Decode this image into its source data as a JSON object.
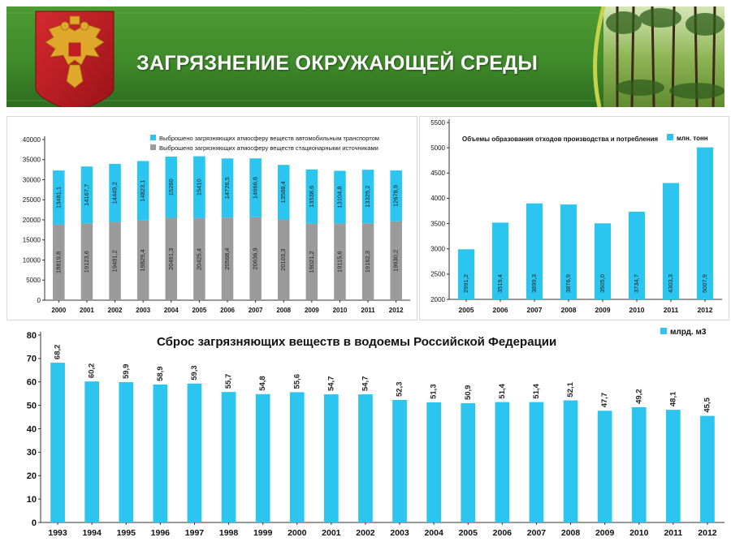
{
  "banner": {
    "title": "ЗАГРЯЗНЕНИЕ ОКРУЖАЮЩЕЙ СРЕДЫ",
    "emblem_icon": "russian-coat-of-arms-icon",
    "photo": "forest-photo",
    "colors": {
      "green": "#3f8a2a",
      "dark_green": "#1d5a16",
      "accent": "#c6d24a",
      "shield": "#c01d24",
      "gold": "#e0a82a"
    }
  },
  "chart_data": [
    {
      "id": "emissions",
      "type": "bar",
      "stacked": true,
      "title": "",
      "xlabel": "",
      "ylabel": "",
      "ylim": [
        0,
        40000
      ],
      "yticks": [
        "0",
        "5000",
        "10000",
        "15000",
        "20000",
        "25000",
        "30000",
        "35000",
        "40000"
      ],
      "grid": false,
      "legend_position": "top",
      "categories": [
        "2000",
        "2001",
        "2002",
        "2003",
        "2004",
        "2005",
        "2006",
        "2007",
        "2008",
        "2009",
        "2010",
        "2011",
        "2012"
      ],
      "series": [
        {
          "name": "Выброшено загрязняющих атмосферу веществ стационарными источниками",
          "color": "#9b9b9b",
          "values": [
            18819.8,
            19123.6,
            19481.2,
            19829.4,
            20491.3,
            20425.4,
            20568.4,
            20636.9,
            20103.3,
            19021.2,
            19115.6,
            19162.3,
            19630.2
          ],
          "labels": [
            "18819,8",
            "19123,6",
            "19481,2",
            "19829,4",
            "20491,3",
            "20425,4",
            "20568,4",
            "20636,9",
            "20103,3",
            "19021,2",
            "19115,6",
            "19162,3",
            "19630,2"
          ]
        },
        {
          "name": "Выброшено загрязняющих атмосферу веществ автомобильным транспортом",
          "color": "#2cc5ef",
          "values": [
            13481.1,
            14167.7,
            14449.2,
            14823.1,
            15260,
            15410,
            14726.5,
            14666.6,
            13588.4,
            13538.6,
            13104.8,
            13325.2,
            12678.9
          ],
          "labels": [
            "13481,1",
            "14167,7",
            "14449,2",
            "14823,1",
            "15260",
            "15410",
            "14726,5",
            "14666,6",
            "13588,4",
            "13538,6",
            "13104,8",
            "13325,2",
            "12678,9"
          ]
        }
      ]
    },
    {
      "id": "waste",
      "type": "bar",
      "title": "Объемы образования отходов производства и потребления",
      "xlabel": "",
      "ylabel": "",
      "ylim": [
        2000,
        5500
      ],
      "yticks": [
        "2000",
        "2500",
        "3000",
        "3500",
        "4000",
        "4500",
        "5000",
        "5500"
      ],
      "grid": false,
      "legend_position": "top-right",
      "categories": [
        "2005",
        "2006",
        "2007",
        "2008",
        "2009",
        "2010",
        "2011",
        "2012"
      ],
      "series": [
        {
          "name": "млн. тонн",
          "color": "#2cc5ef",
          "values": [
            2991.2,
            3519.4,
            3899.3,
            3876.9,
            3505.0,
            3734.7,
            4303.3,
            5007.9
          ],
          "labels": [
            "2991,2",
            "3519,4",
            "3899,3",
            "3876,9",
            "3505,0",
            "3734,7",
            "4303,3",
            "5007,9"
          ]
        }
      ]
    },
    {
      "id": "water",
      "type": "bar",
      "title": "Сброс загрязняющих веществ в водоемы Российской Федерации",
      "xlabel": "",
      "ylabel": "",
      "ylim": [
        0,
        80
      ],
      "yticks": [
        "0",
        "10",
        "20",
        "30",
        "40",
        "50",
        "60",
        "70",
        "80"
      ],
      "grid": false,
      "legend_position": "top-right",
      "categories": [
        "1993",
        "1994",
        "1995",
        "1996",
        "1997",
        "1998",
        "1999",
        "2000",
        "2001",
        "2002",
        "2003",
        "2004",
        "2005",
        "2006",
        "2007",
        "2008",
        "2009",
        "2010",
        "2011",
        "2012"
      ],
      "series": [
        {
          "name": "млрд. м3",
          "color": "#2cc5ef",
          "values": [
            68.2,
            60.2,
            59.9,
            58.9,
            59.3,
            55.7,
            54.8,
            55.6,
            54.7,
            54.7,
            52.3,
            51.3,
            50.9,
            51.4,
            51.4,
            52.1,
            47.7,
            49.2,
            48.1,
            45.5
          ],
          "labels": [
            "68,2",
            "60,2",
            "59,9",
            "58,9",
            "59,3",
            "55,7",
            "54,8",
            "55,6",
            "54,7",
            "54,7",
            "52,3",
            "51,3",
            "50,9",
            "51,4",
            "51,4",
            "52,1",
            "47,7",
            "49,2",
            "48,1",
            "45,5"
          ]
        }
      ]
    }
  ]
}
